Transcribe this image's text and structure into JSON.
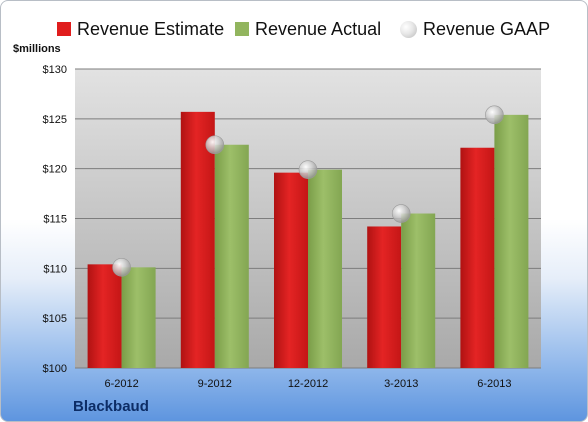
{
  "legend": {
    "estimate_label": "Revenue Estimate",
    "actual_label": "Revenue Actual",
    "gaap_label": "Revenue GAAP"
  },
  "units_label": "$millions",
  "company_label": "Blackbaud",
  "colors": {
    "estimate": "#e01d1d",
    "actual": "#92b55e",
    "gaap": "#d9d9d9"
  },
  "chart_data": {
    "type": "bar",
    "categories": [
      "6-2012",
      "9-2012",
      "12-2012",
      "3-2013",
      "6-2013"
    ],
    "series": [
      {
        "name": "Revenue Estimate",
        "values": [
          110.4,
          125.7,
          119.6,
          114.2,
          122.1
        ]
      },
      {
        "name": "Revenue Actual",
        "values": [
          110.1,
          122.4,
          119.9,
          115.5,
          125.4
        ]
      },
      {
        "name": "Revenue GAAP",
        "values": [
          110.1,
          122.4,
          119.9,
          115.5,
          125.4
        ],
        "marker": "circle"
      }
    ],
    "ylim": [
      100,
      130
    ],
    "yticks": [
      "$100",
      "$105",
      "$110",
      "$115",
      "$120",
      "$125",
      "$130"
    ],
    "grid": true,
    "legend_position": "top"
  }
}
